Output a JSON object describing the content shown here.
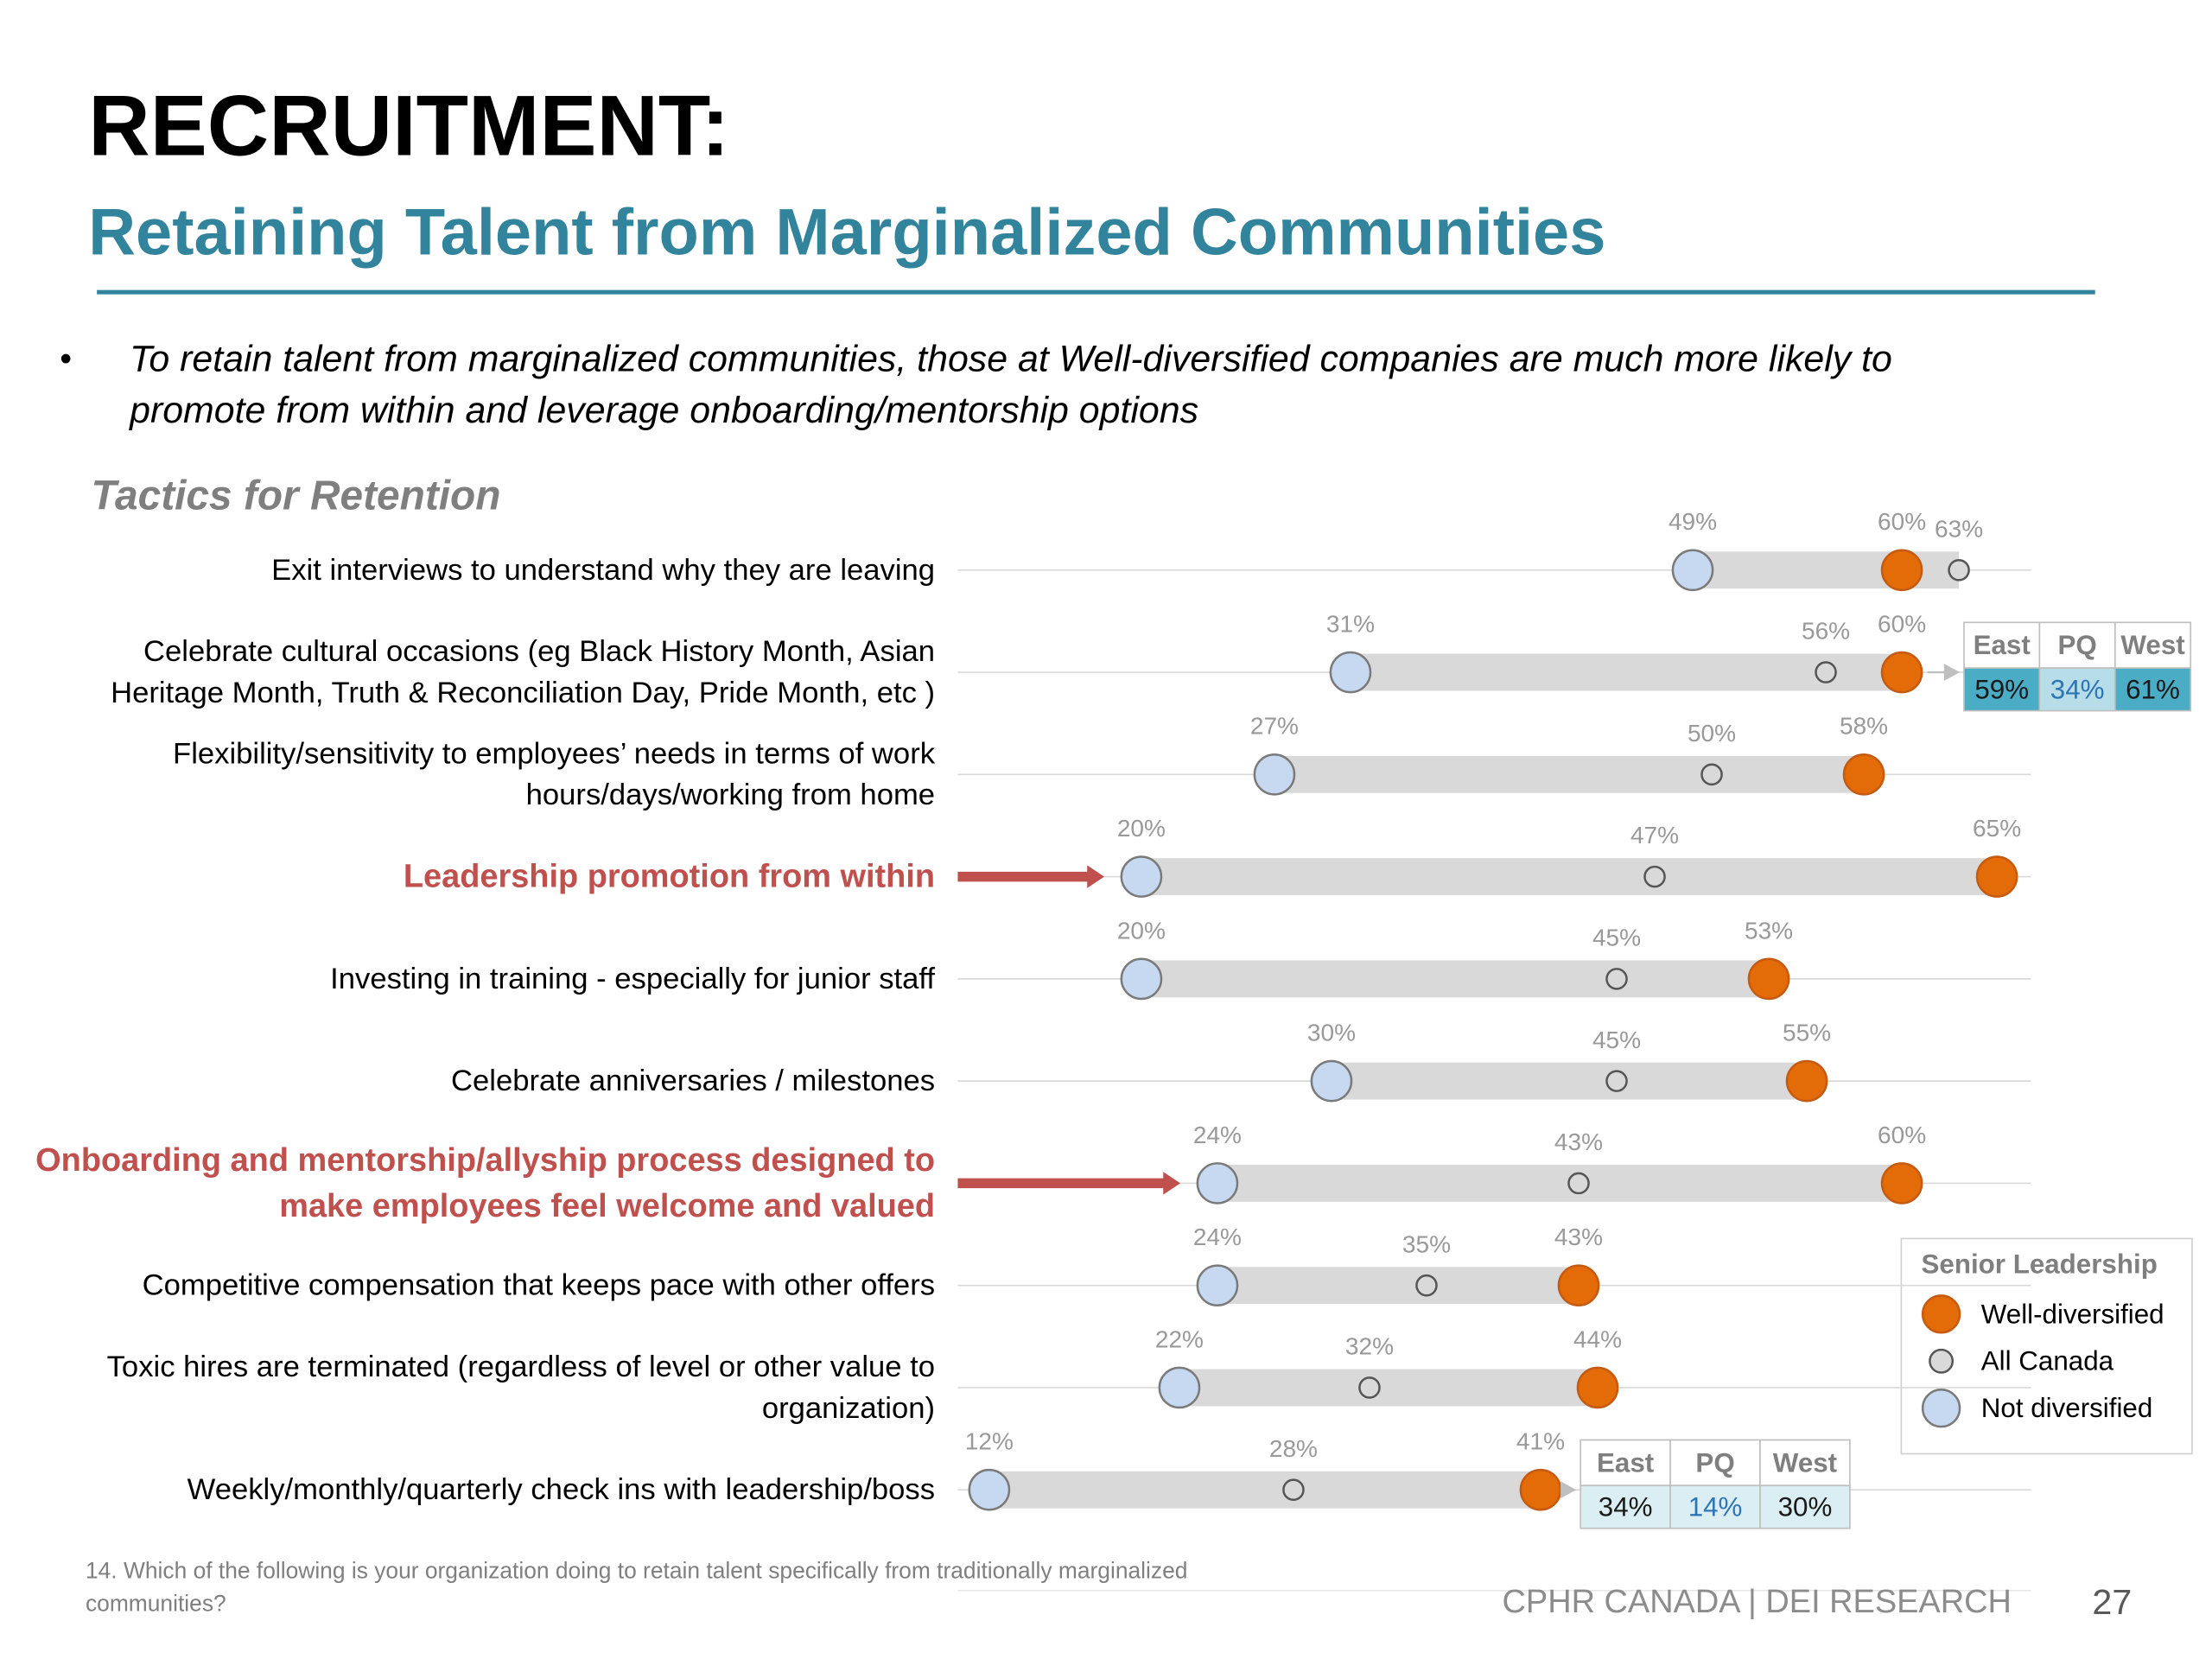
{
  "chart_data": {
    "type": "dumbbell",
    "title": "RECRUITMENT:",
    "subtitle": "Retaining Talent from Marginalized Communities",
    "bullet": [
      "To retain talent from marginalized communities, those at Well-diversified companies are much more likely to",
      "promote from within and leverage onboarding/mentorship options"
    ],
    "chart_title": "Tactics for Retention",
    "categories": [
      [
        "Exit interviews to understand why they are leaving"
      ],
      [
        "Celebrate cultural occasions (eg Black History Month, Asian",
        "Heritage Month, Truth & Reconciliation Day, Pride Month, etc )"
      ],
      [
        "Flexibility/sensitivity to employees’ needs in terms of work",
        "hours/days/working from home"
      ],
      [
        "Leadership promotion from within"
      ],
      [
        "Investing in training - especially for junior staff"
      ],
      [
        "Celebrate anniversaries / milestones"
      ],
      [
        "Onboarding and mentorship/allyship process designed to",
        "make employees feel welcome and valued"
      ],
      [
        "Competitive compensation that keeps pace with other offers"
      ],
      [
        "Toxic hires are terminated (regardless of level or other value to",
        "organization)"
      ],
      [
        "Weekly/monthly/quarterly check ins with leadership/boss"
      ]
    ],
    "highlighted_categories": [
      3,
      6
    ],
    "highlight_color": "#c0504d",
    "legend_title": "Senior Leadership",
    "series": [
      {
        "name": "Well-diversified",
        "color": "#e36c09",
        "marker": "large",
        "values": [
          60,
          60,
          58,
          65,
          53,
          55,
          60,
          43,
          44,
          41
        ],
        "value_labels": [
          "60%",
          "60%",
          "58%",
          "65%",
          "53%",
          "55%",
          "60%",
          "43%",
          "44%",
          "41%"
        ]
      },
      {
        "name": "All Canada",
        "color": "#d9d9d9",
        "marker": "small",
        "values": [
          63,
          56,
          50,
          47,
          45,
          45,
          43,
          35,
          32,
          28
        ],
        "value_labels": [
          "63%",
          "56%",
          "50%",
          "47%",
          "45%",
          "45%",
          "43%",
          "35%",
          "32%",
          "28%"
        ]
      },
      {
        "name": "Not diversified",
        "color": "#c6d9f1",
        "marker": "large",
        "values": [
          49,
          31,
          27,
          20,
          20,
          30,
          24,
          24,
          22,
          12
        ],
        "value_labels": [
          "49%",
          "31%",
          "27%",
          "20%",
          "20%",
          "30%",
          "24%",
          "24%",
          "22%",
          "12%"
        ]
      }
    ],
    "callouts": [
      {
        "row": 1,
        "columns": [
          "East",
          "PQ",
          "West"
        ],
        "values": [
          59,
          34,
          61
        ],
        "value_labels": [
          "59%",
          "34%",
          "61%"
        ],
        "cell_colors": [
          "#4bacc6",
          "#b7dde8",
          "#4bacc6"
        ],
        "text_colors": [
          "#1a1a1a",
          "#2e75b6",
          "#1a1a1a"
        ]
      },
      {
        "row": 9,
        "columns": [
          "East",
          "PQ",
          "West"
        ],
        "values": [
          34,
          14,
          30
        ],
        "value_labels": [
          "34%",
          "14%",
          "30%"
        ],
        "cell_colors": [
          "#daeef3",
          "#daeef3",
          "#daeef3"
        ],
        "text_colors": [
          "#1a1a1a",
          "#2e75b6",
          "#1a1a1a"
        ]
      }
    ],
    "footnote": [
      "14. Which of the following is your organization doing to retain talent specifically from traditionally marginalized",
      "communities?"
    ],
    "footer": "CPHR CANADA  |  DEI RESEARCH",
    "page_number": "27"
  }
}
